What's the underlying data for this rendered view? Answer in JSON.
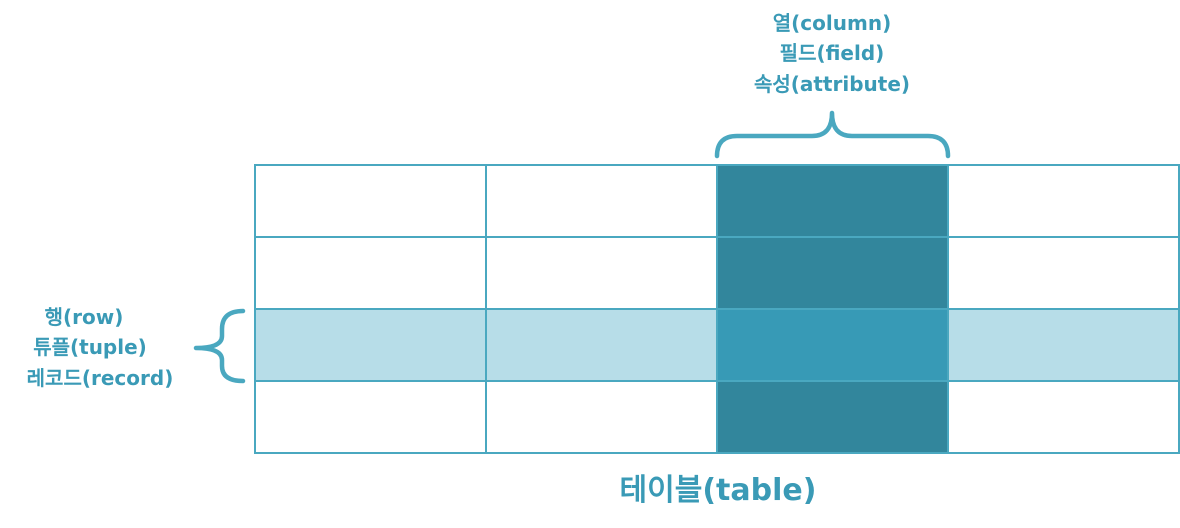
{
  "column_labels": [
    "열(column)",
    "필드(field)",
    "속성(attribute)"
  ],
  "row_labels": [
    "행(row)",
    "튜플(tuple)",
    "레코드(record)"
  ],
  "table_caption": "테이블(table)",
  "table": {
    "rows": 4,
    "columns": 4,
    "highlighted_row": 2,
    "highlighted_column": 2
  },
  "colors": {
    "text": "#3a9ab6",
    "grid": "#4aa8c0",
    "cell": "#ffffff",
    "highlighted_row": "#b7dde8",
    "highlighted_column": "#32869c",
    "intersection": "#379ab6"
  }
}
